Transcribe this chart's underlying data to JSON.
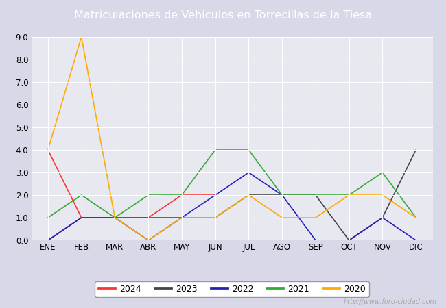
{
  "title": "Matriculaciones de Vehiculos en Torrecillas de la Tiesa",
  "months": [
    "ENE",
    "FEB",
    "MAR",
    "ABR",
    "MAY",
    "JUN",
    "JUL",
    "AGO",
    "SEP",
    "OCT",
    "NOV",
    "DIC"
  ],
  "series": {
    "2024": {
      "values": [
        4,
        1,
        1,
        1,
        2,
        2,
        null,
        null,
        null,
        null,
        null,
        null
      ],
      "color": "#ff3333"
    },
    "2023": {
      "values": [
        0,
        1,
        1,
        1,
        1,
        1,
        2,
        2,
        2,
        0,
        1,
        4
      ],
      "color": "#444444"
    },
    "2022": {
      "values": [
        0,
        1,
        1,
        0,
        1,
        2,
        3,
        2,
        0,
        0,
        1,
        0
      ],
      "color": "#2222bb"
    },
    "2021": {
      "values": [
        1,
        2,
        1,
        2,
        2,
        4,
        4,
        2,
        2,
        2,
        3,
        1
      ],
      "color": "#33aa33"
    },
    "2020": {
      "values": [
        4,
        9,
        1,
        0,
        1,
        1,
        2,
        1,
        1,
        2,
        2,
        1
      ],
      "color": "#ffaa00"
    }
  },
  "ylim": [
    0.0,
    9.0
  ],
  "yticks": [
    0.0,
    1.0,
    2.0,
    3.0,
    4.0,
    5.0,
    6.0,
    7.0,
    8.0,
    9.0
  ],
  "outer_bg": "#d8d8e8",
  "plot_bg": "#e8e8f0",
  "header_bg": "#4169b0",
  "title_color": "white",
  "grid_color": "#ffffff",
  "watermark": "http://www.foro-ciudad.com",
  "legend_order": [
    "2024",
    "2023",
    "2022",
    "2021",
    "2020"
  ],
  "title_fontsize": 11.5,
  "tick_fontsize": 8.5,
  "legend_fontsize": 9.0
}
